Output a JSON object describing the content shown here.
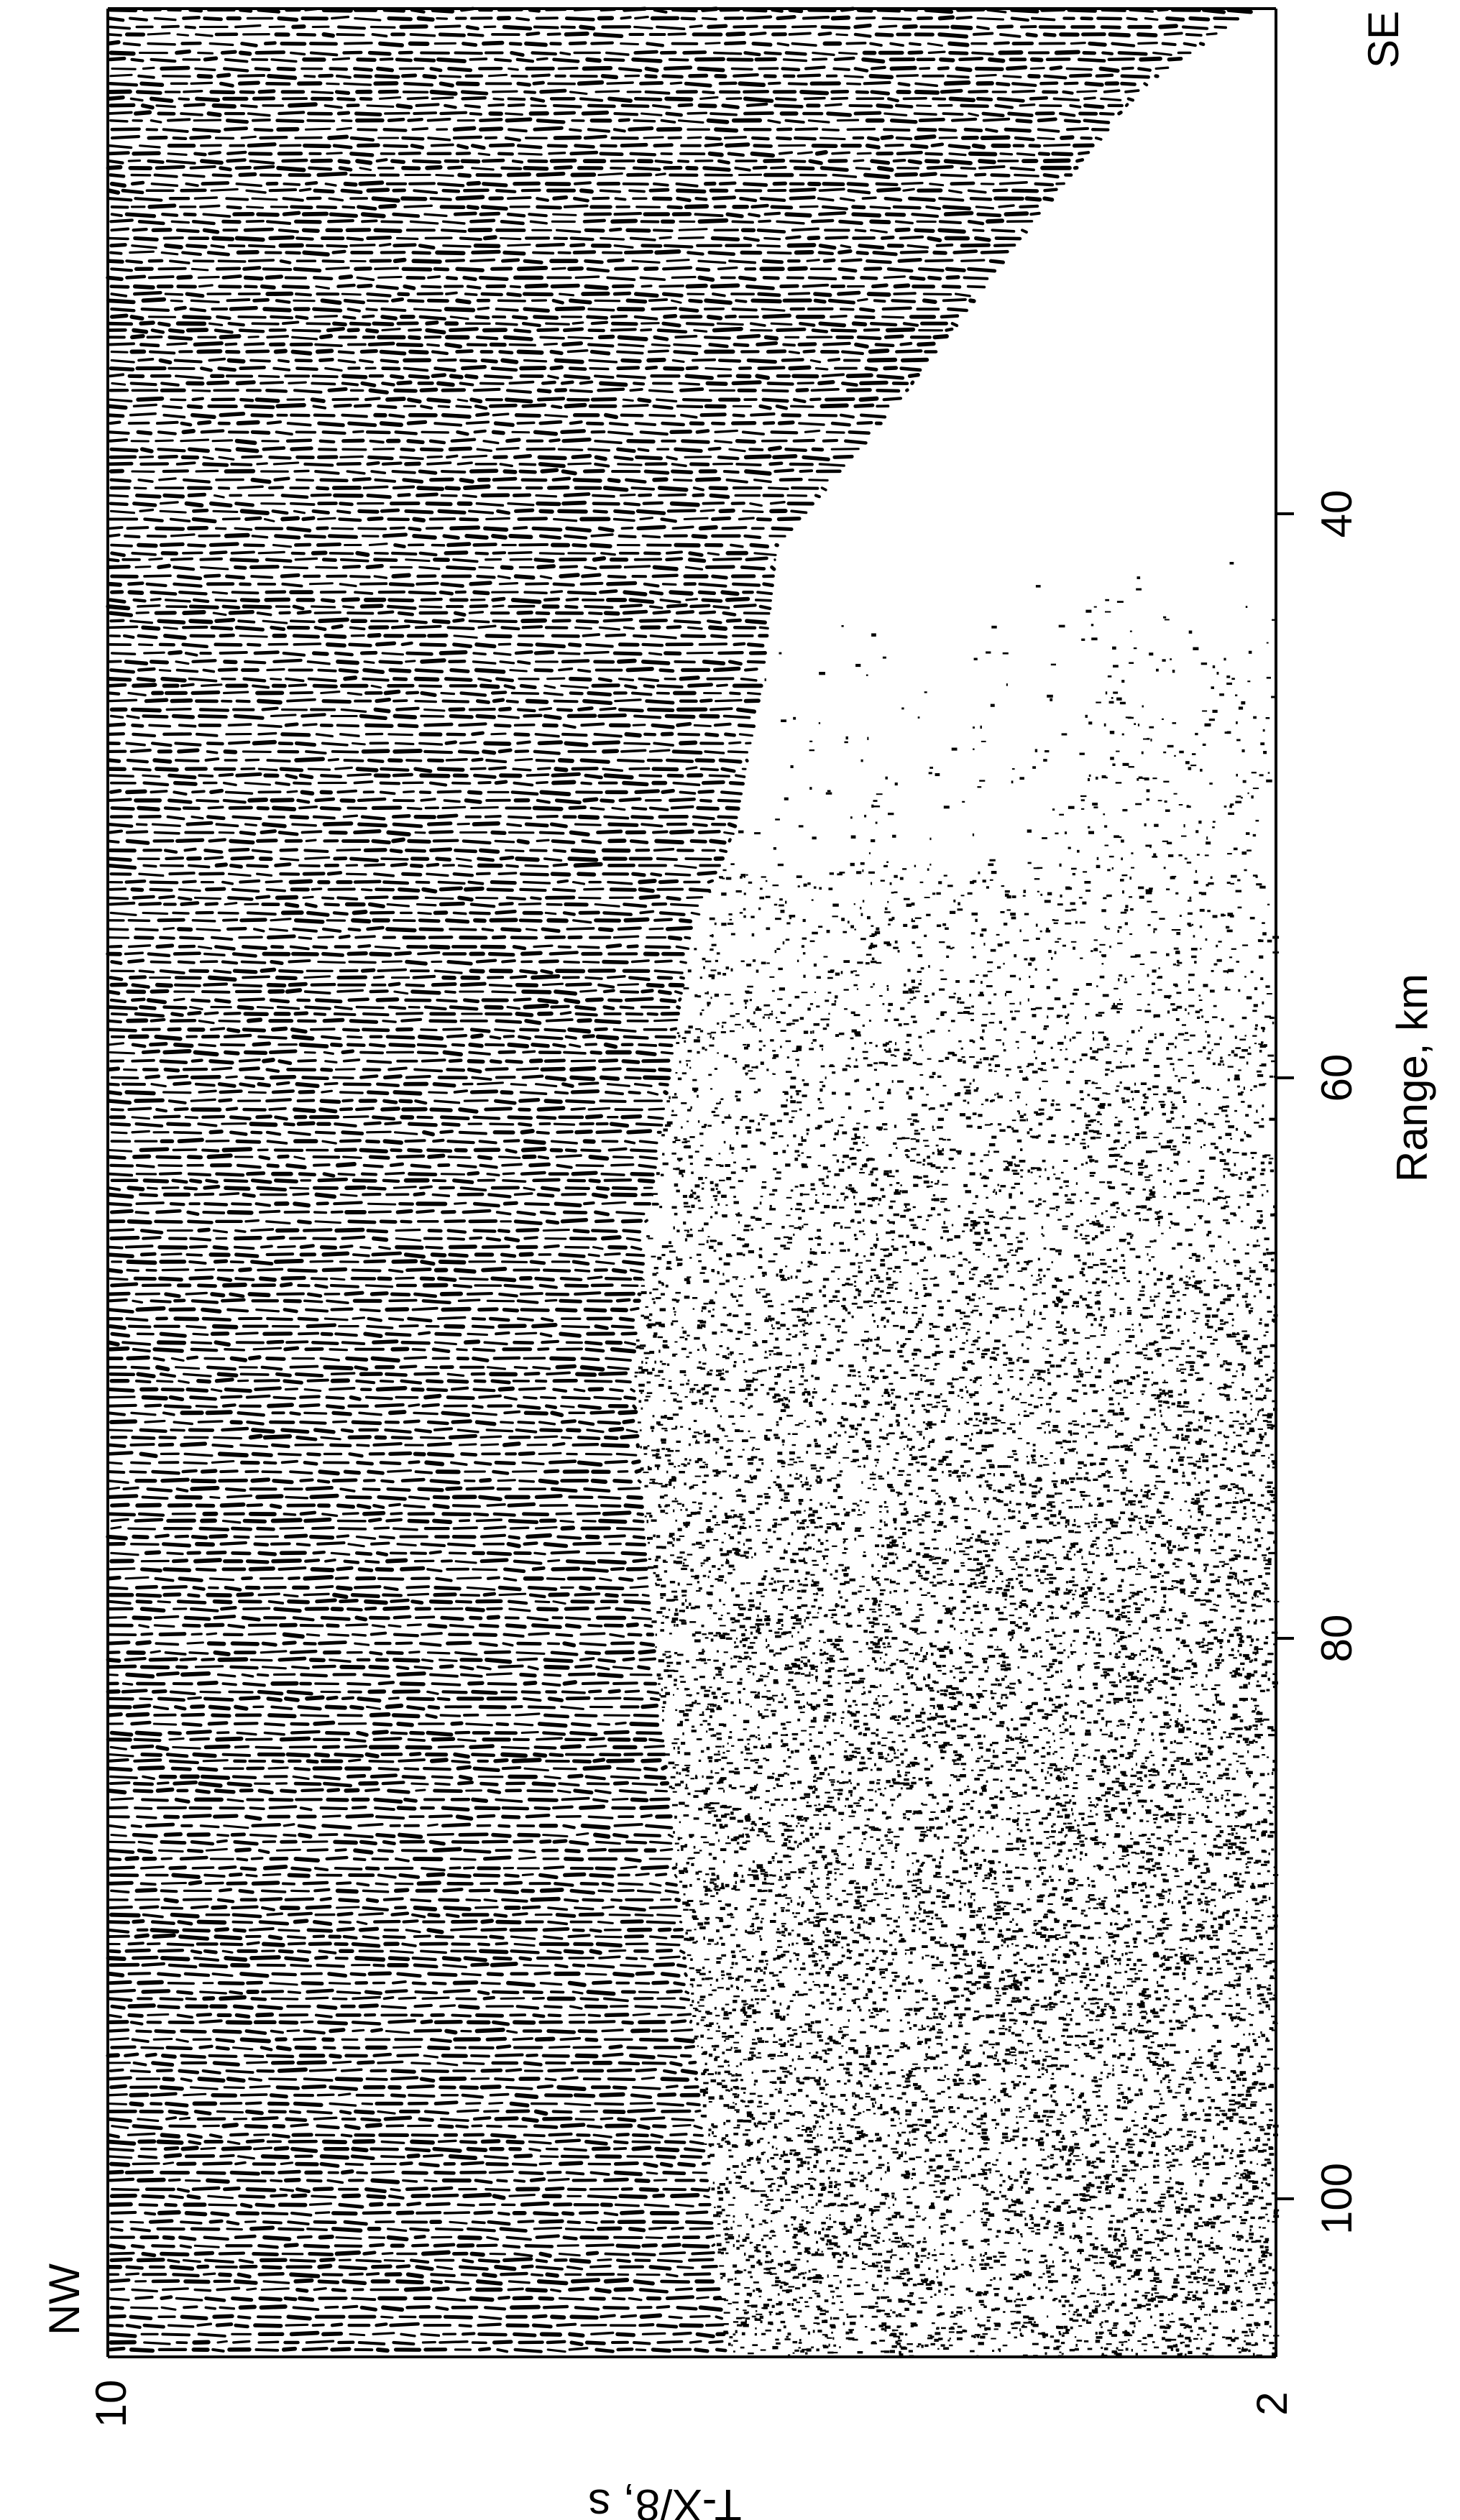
{
  "figure": {
    "direction_left": "NW",
    "direction_right": "SE",
    "x_axis_label": "Range, km",
    "y_axis_label": "T-X/8, s",
    "x_ticks": [
      "40",
      "60",
      "80",
      "100"
    ],
    "y_ticks": [
      "10",
      "2"
    ],
    "colors": {
      "ink": "#000000",
      "paper": "#ffffff"
    }
  }
}
